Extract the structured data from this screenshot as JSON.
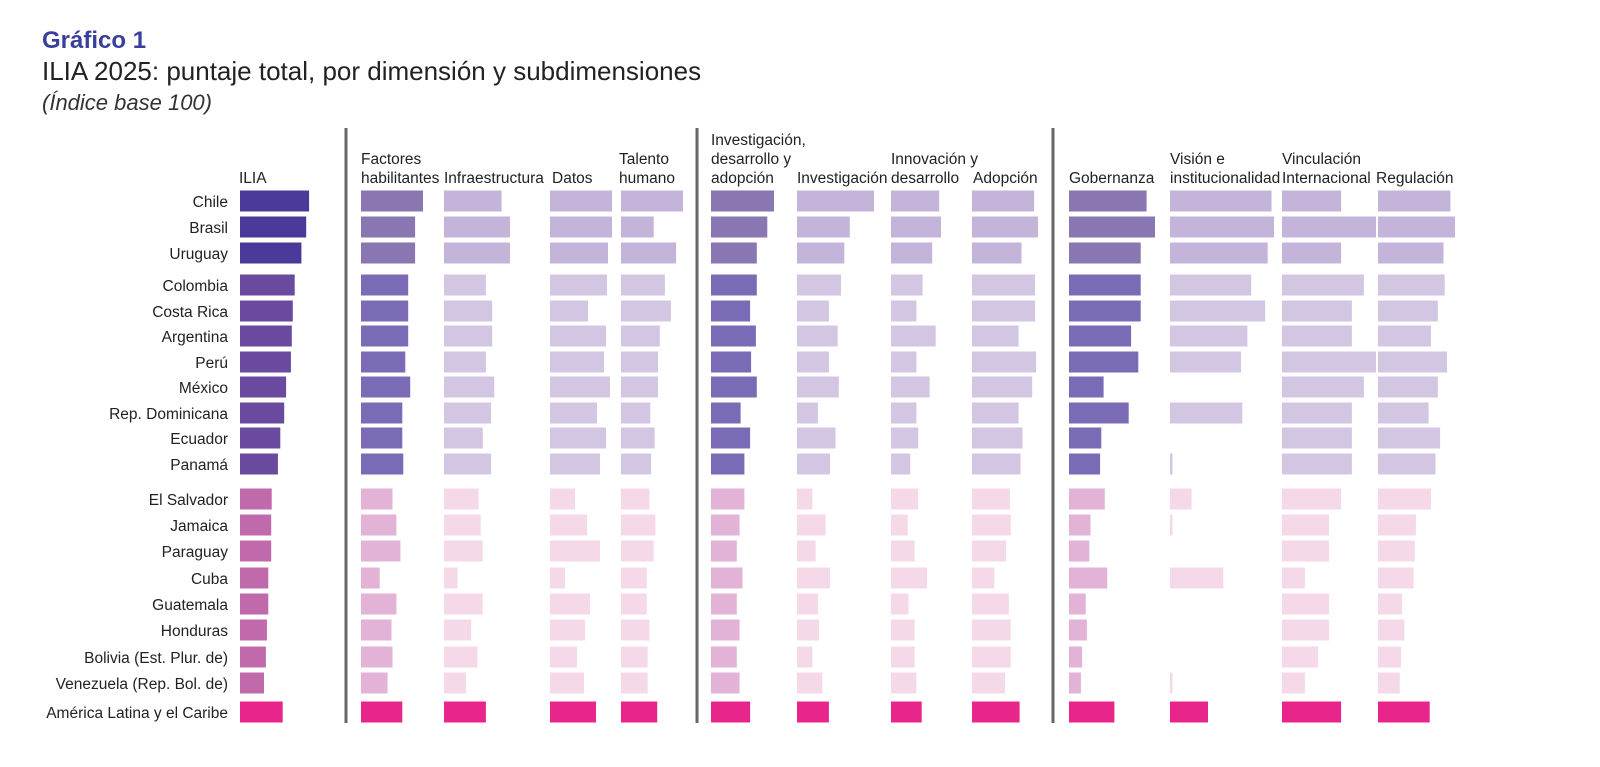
{
  "header": {
    "label": "Gráfico 1",
    "title": "ILIA 2025: puntaje total, por dimensión y subdimensiones",
    "subtitle": "(Índice base 100)"
  },
  "colors": {
    "total_tier1": "#4b3a9a",
    "total_tier2": "#6a4a9e",
    "total_tier3": "#c06aab",
    "total_avg": "#e8258a",
    "sub_tier1": "#8a76b0",
    "sub_tier2": "#7b6bb6",
    "sub_tier3": "#e2b3d6",
    "sub_avg": "#e8258a",
    "light_tier1": "#c4b4da",
    "light_tier2": "#d3c6e3",
    "light_tier3": "#f5d9e9",
    "divider": "#666666"
  },
  "chart_data": {
    "type": "bar",
    "orientation": "horizontal",
    "scale": "Índice base 100",
    "categories": [
      "Chile",
      "Brasil",
      "Uruguay",
      "Colombia",
      "Costa Rica",
      "Argentina",
      "Perú",
      "México",
      "Rep. Dominicana",
      "Ecuador",
      "Panamá",
      "El Salvador",
      "Jamaica",
      "Paraguay",
      "Cuba",
      "Guatemala",
      "Honduras",
      "Bolivia (Est. Plur. de)",
      "Venezuela (Rep. Bol. de)",
      "América Latina y el Caribe"
    ],
    "tiers": [
      1,
      1,
      1,
      2,
      2,
      2,
      2,
      2,
      2,
      2,
      2,
      3,
      3,
      3,
      3,
      3,
      3,
      3,
      3,
      4
    ],
    "series": [
      {
        "name": "ILIA",
        "values": [
          72.0,
          69.0,
          64.0,
          57.0,
          55.0,
          54.0,
          53.0,
          48.0,
          46.0,
          42.0,
          39.5,
          33.0,
          32.5,
          32.5,
          29.5,
          29.5,
          28.0,
          27.0,
          25.0,
          44.5
        ]
      },
      {
        "name": "Factores habilitantes",
        "values": [
          63,
          55,
          55,
          48,
          48,
          48,
          45,
          50,
          42,
          42,
          43,
          32,
          36,
          40,
          19,
          36,
          31,
          32,
          27,
          42
        ]
      },
      {
        "name": "Infraestructura",
        "values": [
          55,
          63,
          63,
          40,
          46,
          46,
          40,
          48,
          45,
          37,
          45,
          33,
          35,
          37,
          13,
          37,
          26,
          32,
          21,
          40
        ]
      },
      {
        "name": "Datos",
        "values": [
          62,
          62,
          58,
          57,
          38,
          56,
          54,
          60,
          47,
          56,
          50,
          25,
          37,
          50,
          15,
          40,
          35,
          27,
          34,
          46
        ]
      },
      {
        "name": "Talento humano",
        "values": [
          72,
          38,
          64,
          51,
          58,
          45,
          43,
          43,
          34,
          39,
          35,
          33,
          40,
          38,
          30,
          30,
          33,
          31,
          31,
          42
        ]
      },
      {
        "name": "Investigación, desarrollo y adopción",
        "values": [
          66,
          59,
          48,
          48,
          41,
          47,
          42,
          48,
          31,
          41,
          35,
          35,
          30,
          27,
          33,
          27,
          30,
          27,
          30,
          41
        ]
      },
      {
        "name": "Investigación",
        "values": [
          70,
          48,
          43,
          40,
          29,
          37,
          29,
          38,
          19,
          35,
          30,
          14,
          26,
          17,
          30,
          19,
          20,
          14,
          23,
          29
        ]
      },
      {
        "name": "Innovación y desarrollo",
        "values": [
          55,
          57,
          47,
          36,
          29,
          51,
          29,
          44,
          29,
          31,
          22,
          31,
          19,
          27,
          41,
          20,
          27,
          27,
          29,
          35
        ]
      },
      {
        "name": "Adopción",
        "values": [
          64,
          68,
          51,
          65,
          65,
          48,
          66,
          62,
          48,
          52,
          50,
          39,
          40,
          35,
          23,
          38,
          40,
          40,
          34,
          49
        ]
      },
      {
        "name": "Gobernanza",
        "values": [
          65,
          72,
          60,
          60,
          60,
          52,
          58,
          29,
          50,
          27,
          26,
          30,
          18,
          17,
          32,
          14,
          15,
          11,
          10,
          38
        ]
      },
      {
        "name": "Visión e institucionalidad",
        "values": [
          80,
          82,
          77,
          64,
          75,
          61,
          56,
          0,
          57,
          0,
          2,
          17,
          2,
          0,
          42,
          0,
          0,
          0,
          2,
          30
        ]
      },
      {
        "name": "Vinculación Internacional",
        "values": [
          49,
          78,
          49,
          68,
          58,
          58,
          78,
          68,
          58,
          58,
          58,
          49,
          39,
          39,
          19,
          39,
          39,
          30,
          19,
          49
        ]
      },
      {
        "name": "Regulación",
        "values": [
          63,
          67,
          57,
          58,
          52,
          46,
          60,
          52,
          44,
          54,
          50,
          46,
          33,
          32,
          31,
          21,
          23,
          20,
          19,
          45
        ]
      }
    ]
  }
}
